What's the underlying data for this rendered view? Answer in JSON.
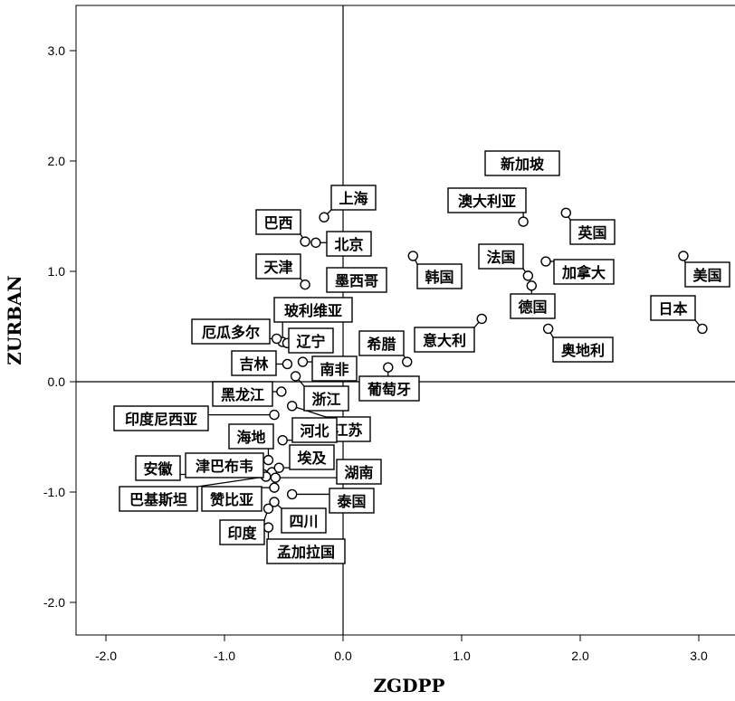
{
  "chart_data": {
    "type": "scatter",
    "title": "",
    "xlabel": "ZGDPP",
    "ylabel": "ZURBAN",
    "xlim": [
      -2.3,
      3.3
    ],
    "ylim": [
      -2.3,
      3.4
    ],
    "xticks": [
      "-2.0",
      "-1.0",
      "0.0",
      "1.0",
      "2.0",
      "3.0"
    ],
    "yticks": [
      "-2.0",
      "-1.0",
      "0.0",
      "1.0",
      "2.0",
      "3.0"
    ],
    "reference_lines": {
      "x": 0,
      "y": 0
    },
    "grid": false,
    "points": [
      {
        "label": "新加坡",
        "x": 1.77,
        "y": 1.96
      },
      {
        "label": "澳大利亚",
        "x": 1.52,
        "y": 1.45
      },
      {
        "label": "英国",
        "x": 1.88,
        "y": 1.53
      },
      {
        "label": "法国",
        "x": 1.56,
        "y": 0.96
      },
      {
        "label": "加拿大",
        "x": 1.71,
        "y": 1.09
      },
      {
        "label": "美国",
        "x": 2.87,
        "y": 1.14
      },
      {
        "label": "日本",
        "x": 3.03,
        "y": 0.48
      },
      {
        "label": "德国",
        "x": 1.59,
        "y": 0.87
      },
      {
        "label": "奥地利",
        "x": 1.73,
        "y": 0.48
      },
      {
        "label": "意大利",
        "x": 1.17,
        "y": 0.57
      },
      {
        "label": "韩国",
        "x": 0.59,
        "y": 1.14
      },
      {
        "label": "希腊",
        "x": 0.54,
        "y": 0.18
      },
      {
        "label": "葡萄牙",
        "x": 0.38,
        "y": 0.13
      },
      {
        "label": "上海",
        "x": -0.16,
        "y": 1.49
      },
      {
        "label": "巴西",
        "x": -0.32,
        "y": 1.27
      },
      {
        "label": "北京",
        "x": -0.23,
        "y": 1.26
      },
      {
        "label": "天津",
        "x": -0.32,
        "y": 0.88
      },
      {
        "label": "墨西哥",
        "x": -0.08,
        "y": 0.92
      },
      {
        "label": "玻利维亚",
        "x": -0.51,
        "y": 0.36
      },
      {
        "label": "厄瓜多尔",
        "x": -0.56,
        "y": 0.39
      },
      {
        "label": "辽宁",
        "x": -0.47,
        "y": 0.35
      },
      {
        "label": "吉林",
        "x": -0.47,
        "y": 0.16
      },
      {
        "label": "南非",
        "x": -0.34,
        "y": 0.18
      },
      {
        "label": "黑龙江",
        "x": -0.52,
        "y": -0.09
      },
      {
        "label": "浙江",
        "x": -0.4,
        "y": 0.05
      },
      {
        "label": "印度尼西亚",
        "x": -0.58,
        "y": -0.3
      },
      {
        "label": "江苏",
        "x": -0.43,
        "y": -0.22
      },
      {
        "label": "海地",
        "x": -0.63,
        "y": -0.71
      },
      {
        "label": "河北",
        "x": -0.51,
        "y": -0.53
      },
      {
        "label": "安徽",
        "x": -0.67,
        "y": -0.84
      },
      {
        "label": "津巴布韦",
        "x": -0.6,
        "y": -0.82
      },
      {
        "label": "埃及",
        "x": -0.54,
        "y": -0.78
      },
      {
        "label": "湖南",
        "x": -0.57,
        "y": -0.87
      },
      {
        "label": "巴基斯坦",
        "x": -0.65,
        "y": -0.86
      },
      {
        "label": "赞比亚",
        "x": -0.58,
        "y": -0.96
      },
      {
        "label": "泰国",
        "x": -0.43,
        "y": -1.02
      },
      {
        "label": "四川",
        "x": -0.58,
        "y": -1.09
      },
      {
        "label": "印度",
        "x": -0.63,
        "y": -1.15
      },
      {
        "label": "孟加拉国",
        "x": -0.63,
        "y": -1.32
      }
    ]
  }
}
